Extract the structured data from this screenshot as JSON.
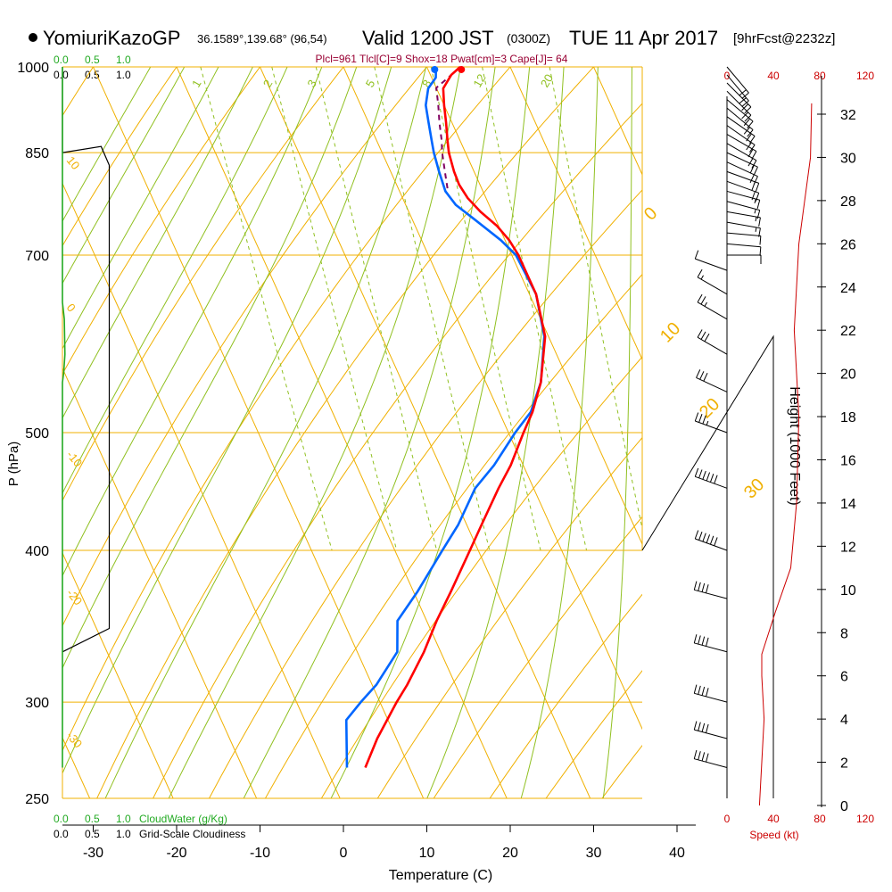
{
  "header": {
    "station": "YomiuriKazoGP",
    "coords": "36.1589°,139.68° (96,54)",
    "valid": "Valid 1200 JST",
    "utc": "(0300Z)",
    "date": "TUE 11 Apr 2017",
    "fcst": "[9hrFcst@2232z]",
    "indices": "Plcl=961 Tlcl[C]=9 Shox=18 Pwat[cm]=3 Cape[J]= 64"
  },
  "colors": {
    "isobar": "#f0b000",
    "dry_adiabat": "#f0b000",
    "moist_adiabat": "#90c020",
    "mixing_ratio": "#90c020",
    "temperature": "#ff0000",
    "dewpoint": "#0066ff",
    "parcel": "#800060",
    "cloud_water": "#22aa22",
    "cloudiness": "#000000",
    "wind_speed": "#cc0000",
    "indices_text": "#990033"
  },
  "chart_data": {
    "type": "line",
    "xlabel": "Temperature (C)",
    "ylabel": "P (hPa)",
    "xlim": [
      -35,
      36
    ],
    "ylim": [
      1000,
      250
    ],
    "x_ticks": [
      -30,
      -20,
      -10,
      0,
      10,
      20,
      30,
      40
    ],
    "p_ticks": [
      1000,
      850,
      700,
      500,
      400,
      300,
      250
    ],
    "height_axis": {
      "label": "Height (1000 Feet)",
      "ticks": [
        0,
        2,
        4,
        6,
        8,
        10,
        12,
        14,
        16,
        18,
        20,
        22,
        24,
        26,
        28,
        30,
        32
      ]
    },
    "top_left_scales": {
      "cloud_water": [
        "0.0",
        "0.5",
        "1.0"
      ],
      "cloudiness": [
        "0.0",
        "0.5",
        "1.0"
      ]
    },
    "bottom_left_scales": {
      "cloud_water": [
        "0.0",
        "0.5",
        "1.0"
      ],
      "cloud_water_label": "CloudWater (g/Kg)",
      "cloudiness": [
        "0.0",
        "0.5",
        "1.0"
      ],
      "cloudiness_label": "Grid-Scale Cloudiness"
    },
    "speed_axis": {
      "label": "Speed (kt)",
      "ticks": [
        "0",
        "40",
        "80",
        "120"
      ]
    },
    "dry_adiabat_labels": [
      "10",
      "0",
      "-10",
      "-20",
      "-30"
    ],
    "moist_labels": [
      "0",
      "10",
      "20",
      "30"
    ],
    "mixing_ratio_labels": [
      "1",
      "2",
      "3",
      "5",
      "8",
      "12",
      "20"
    ],
    "temperature": [
      {
        "p": 1000,
        "t": 14.0
      },
      {
        "p": 985,
        "t": 12.5
      },
      {
        "p": 960,
        "t": 10.8
      },
      {
        "p": 930,
        "t": 10.0
      },
      {
        "p": 900,
        "t": 9.3
      },
      {
        "p": 870,
        "t": 8.5
      },
      {
        "p": 850,
        "t": 8.0
      },
      {
        "p": 820,
        "t": 7.6
      },
      {
        "p": 800,
        "t": 7.5
      },
      {
        "p": 780,
        "t": 7.8
      },
      {
        "p": 760,
        "t": 8.6
      },
      {
        "p": 740,
        "t": 9.8
      },
      {
        "p": 720,
        "t": 10.5
      },
      {
        "p": 700,
        "t": 10.8
      },
      {
        "p": 650,
        "t": 10.8
      },
      {
        "p": 600,
        "t": 9.6
      },
      {
        "p": 550,
        "t": 6.6
      },
      {
        "p": 520,
        "t": 4.0
      },
      {
        "p": 500,
        "t": 1.8
      },
      {
        "p": 470,
        "t": -1.5
      },
      {
        "p": 450,
        "t": -4.2
      },
      {
        "p": 420,
        "t": -8.2
      },
      {
        "p": 400,
        "t": -11.0
      },
      {
        "p": 370,
        "t": -15.5
      },
      {
        "p": 350,
        "t": -18.8
      },
      {
        "p": 330,
        "t": -22.0
      },
      {
        "p": 310,
        "t": -25.8
      },
      {
        "p": 300,
        "t": -28.0
      },
      {
        "p": 280,
        "t": -32.3
      },
      {
        "p": 265,
        "t": -35.3
      }
    ],
    "dewpoint": [
      {
        "p": 990,
        "t": 10.8
      },
      {
        "p": 980,
        "t": 10.5
      },
      {
        "p": 960,
        "t": 9.0
      },
      {
        "p": 930,
        "t": 7.8
      },
      {
        "p": 900,
        "t": 7.2
      },
      {
        "p": 870,
        "t": 6.6
      },
      {
        "p": 850,
        "t": 6.2
      },
      {
        "p": 820,
        "t": 5.8
      },
      {
        "p": 790,
        "t": 5.5
      },
      {
        "p": 770,
        "t": 6.0
      },
      {
        "p": 750,
        "t": 7.4
      },
      {
        "p": 720,
        "t": 9.5
      },
      {
        "p": 700,
        "t": 10.5
      },
      {
        "p": 650,
        "t": 10.8
      },
      {
        "p": 600,
        "t": 9.5
      },
      {
        "p": 550,
        "t": 6.6
      },
      {
        "p": 520,
        "t": 3.8
      },
      {
        "p": 500,
        "t": 0.8
      },
      {
        "p": 470,
        "t": -3.5
      },
      {
        "p": 450,
        "t": -7.0
      },
      {
        "p": 420,
        "t": -11.0
      },
      {
        "p": 400,
        "t": -14.3
      },
      {
        "p": 370,
        "t": -19.5
      },
      {
        "p": 350,
        "t": -23.5
      },
      {
        "p": 330,
        "t": -25.2
      },
      {
        "p": 310,
        "t": -29.5
      },
      {
        "p": 300,
        "t": -32.3
      },
      {
        "p": 290,
        "t": -35.0
      },
      {
        "p": 265,
        "t": -37.5
      }
    ],
    "parcel": [
      {
        "p": 1000,
        "t": 14.0
      },
      {
        "p": 980,
        "t": 12.0
      },
      {
        "p": 961,
        "t": 10.0
      },
      {
        "p": 930,
        "t": 9.3
      },
      {
        "p": 900,
        "t": 8.5
      },
      {
        "p": 870,
        "t": 7.8
      },
      {
        "p": 850,
        "t": 7.2
      },
      {
        "p": 820,
        "t": 6.5
      },
      {
        "p": 790,
        "t": 5.8
      }
    ],
    "surface": {
      "p": 1000,
      "t": 14.0,
      "td": 10.8
    },
    "cloud_water": [
      {
        "p": 1000,
        "v": 0.0
      },
      {
        "p": 640,
        "v": 0.0
      },
      {
        "p": 620,
        "v": 0.03
      },
      {
        "p": 580,
        "v": 0.04
      },
      {
        "p": 560,
        "v": 0.02
      },
      {
        "p": 550,
        "v": 0.0
      },
      {
        "p": 265,
        "v": 0.0
      }
    ],
    "cloudiness": [
      {
        "p": 1000,
        "v": 0.0
      },
      {
        "p": 850,
        "v": 0.0
      },
      {
        "p": 860,
        "v": 0.62
      },
      {
        "p": 830,
        "v": 0.75
      },
      {
        "p": 800,
        "v": 0.75
      },
      {
        "p": 600,
        "v": 0.75
      },
      {
        "p": 400,
        "v": 0.75
      },
      {
        "p": 345,
        "v": 0.75
      },
      {
        "p": 330,
        "v": 0.0
      }
    ],
    "wind_speed": [
      {
        "h": 0.0,
        "s": 28
      },
      {
        "h": 2.0,
        "s": 30
      },
      {
        "h": 4.0,
        "s": 32
      },
      {
        "h": 6.0,
        "s": 30
      },
      {
        "h": 7.0,
        "s": 30
      },
      {
        "h": 9.0,
        "s": 42
      },
      {
        "h": 11.0,
        "s": 55
      },
      {
        "h": 14.0,
        "s": 60
      },
      {
        "h": 18.0,
        "s": 62
      },
      {
        "h": 22.0,
        "s": 58
      },
      {
        "h": 26.0,
        "s": 62
      },
      {
        "h": 30.0,
        "s": 72
      },
      {
        "h": 32.5,
        "s": 73
      }
    ],
    "wind_barbs": [
      {
        "p": 1000,
        "dir": 140,
        "spd": 20
      },
      {
        "p": 985,
        "dir": 140,
        "spd": 20
      },
      {
        "p": 970,
        "dir": 135,
        "spd": 20
      },
      {
        "p": 955,
        "dir": 135,
        "spd": 20
      },
      {
        "p": 940,
        "dir": 130,
        "spd": 20
      },
      {
        "p": 925,
        "dir": 130,
        "spd": 20
      },
      {
        "p": 910,
        "dir": 125,
        "spd": 20
      },
      {
        "p": 895,
        "dir": 125,
        "spd": 20
      },
      {
        "p": 880,
        "dir": 120,
        "spd": 20
      },
      {
        "p": 865,
        "dir": 120,
        "spd": 20
      },
      {
        "p": 850,
        "dir": 115,
        "spd": 20
      },
      {
        "p": 835,
        "dir": 115,
        "spd": 20
      },
      {
        "p": 820,
        "dir": 110,
        "spd": 20
      },
      {
        "p": 805,
        "dir": 110,
        "spd": 20
      },
      {
        "p": 790,
        "dir": 105,
        "spd": 15
      },
      {
        "p": 775,
        "dir": 105,
        "spd": 15
      },
      {
        "p": 760,
        "dir": 100,
        "spd": 15
      },
      {
        "p": 745,
        "dir": 100,
        "spd": 15
      },
      {
        "p": 730,
        "dir": 95,
        "spd": 10
      },
      {
        "p": 715,
        "dir": 95,
        "spd": 10
      },
      {
        "p": 700,
        "dir": 90,
        "spd": 10
      },
      {
        "p": 680,
        "dir": 290,
        "spd": 10
      },
      {
        "p": 650,
        "dir": 300,
        "spd": 15
      },
      {
        "p": 620,
        "dir": 300,
        "spd": 25
      },
      {
        "p": 580,
        "dir": 300,
        "spd": 30
      },
      {
        "p": 540,
        "dir": 295,
        "spd": 30
      },
      {
        "p": 500,
        "dir": 290,
        "spd": 35
      },
      {
        "p": 450,
        "dir": 290,
        "spd": 60
      },
      {
        "p": 400,
        "dir": 290,
        "spd": 60
      },
      {
        "p": 365,
        "dir": 285,
        "spd": 40
      },
      {
        "p": 330,
        "dir": 285,
        "spd": 40
      },
      {
        "p": 300,
        "dir": 285,
        "spd": 40
      },
      {
        "p": 280,
        "dir": 285,
        "spd": 40
      },
      {
        "p": 265,
        "dir": 285,
        "spd": 40
      }
    ]
  }
}
